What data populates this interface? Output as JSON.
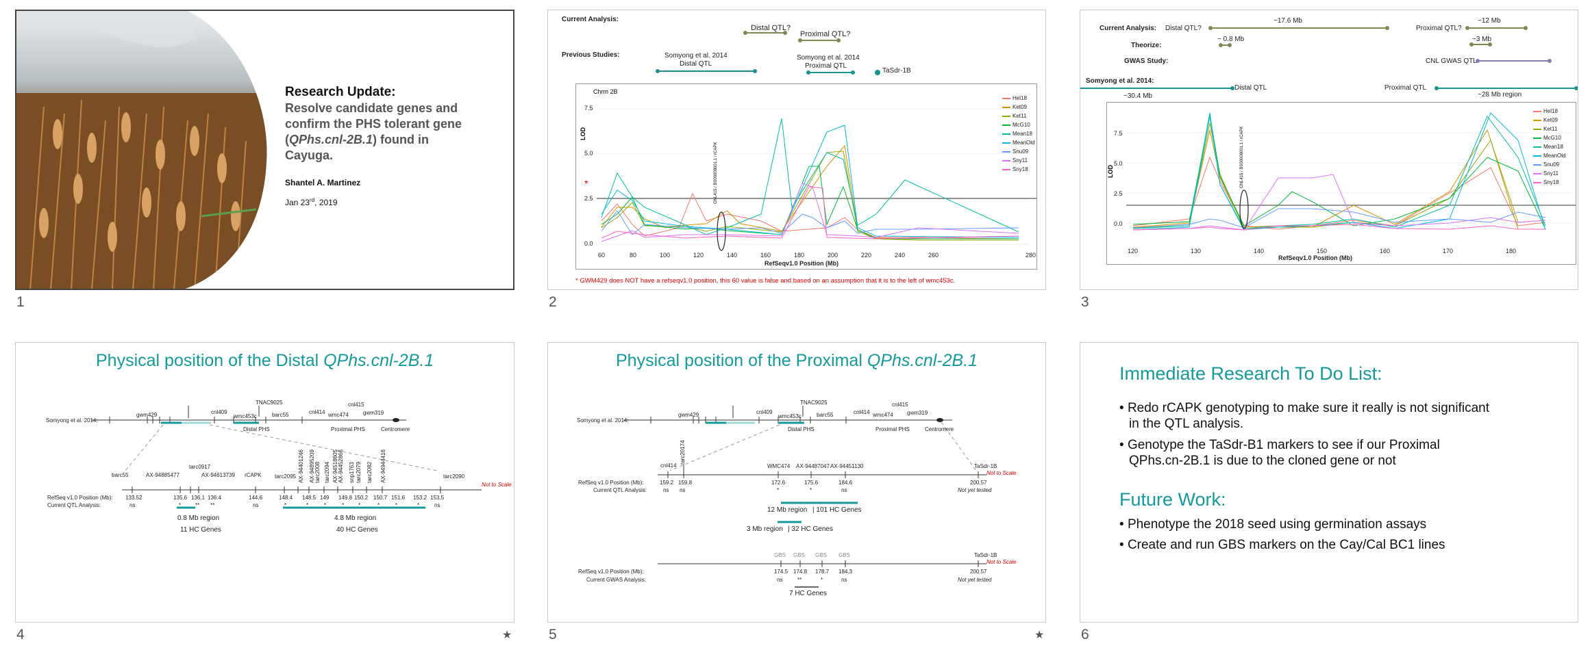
{
  "slides": [
    {
      "number": "1",
      "title": "Research Update:",
      "subtitle_lines": [
        "Resolve candidate genes and",
        "confirm the PHS tolerant gene"
      ],
      "subtitle_paren_open": "(",
      "subtitle_italic": "QPhs.cnl-2B.1",
      "subtitle_paren_close": ") found in",
      "subtitle_last": "Cayuga.",
      "author": "Shantel A. Martinez",
      "date_main": "Jan 23",
      "date_sup": "rd",
      "date_year": ", 2019"
    },
    {
      "number": "2",
      "current_analysis": "Current Analysis:",
      "distal_qtl": "Distal QTL?",
      "proximal_qtl": "Proximal QTL?",
      "previous_studies": "Previous Studies:",
      "somyong_distal_1": "Somyong et al. 2014",
      "somyong_distal_2": "Distal QTL",
      "somyong_prox_1": "Somyong et al. 2014",
      "somyong_prox_2": "Proximal QTL",
      "tasdr": "TaSdr-1B",
      "plot_title": "Chrm 2B",
      "ylabel": "LOD",
      "xlabel": "RefSeqv1.0 Position (Mb)",
      "marker_label": "GNL415 / BS00008001.1 / rCAPK",
      "footnote": "* GWM429 does NOT have a refseqv1.0 position, this 60 value is false and based on an assumption that it is to the left of wmc453c."
    },
    {
      "number": "3",
      "current_analysis": "Current Analysis:",
      "distal_qtl": "Distal QTL?",
      "span_17": "~17.6 Mb",
      "proximal_qtl": "Proximal QTL?",
      "span_12": "~12 Mb",
      "theorize": "Theorize:",
      "span_08": "~ 0.8 Mb",
      "span_3": "~3 Mb",
      "gwas_study": "GWAS Study:",
      "cnl_gwas": "CNL GWAS QTL",
      "somyong": "Somyong et al. 2014:",
      "distal_qtl2": "Distal QTL",
      "span_304": "~30.4 Mb",
      "proximal_qtl2": "Proximal QTL",
      "span_28": "~28 Mb region",
      "ylabel": "LOD",
      "xlabel": "RefSeqv1.0 Position (Mb)",
      "marker_label": "GNL415 / BS00008001.1 / rCAPK"
    },
    {
      "number": "4",
      "title_plain": "Physical position of the Distal ",
      "title_italic": "QPhs.cnl-2B.1",
      "somyong": "Somyong et al. 2014:",
      "top_markers": [
        "gwm429",
        "cnl409",
        "wmc453c",
        "TNAC9025",
        "barc55",
        "cnl414",
        "wmc474",
        "cnl415",
        "gwm319"
      ],
      "distal_phs": "Distal PHS",
      "proximal_phs": "Proximal PHS",
      "centromere": "Centromere",
      "bottom_markers": [
        "barc55",
        "AX-94885477",
        "tarc0917",
        "AX-94613739",
        "rCAPK",
        "tarc2095",
        "AX-94401246",
        "AX-94895209",
        "tarc2008",
        "tarc2094",
        "AX-94518605",
        "AX-94452866",
        "snp1763",
        "tarc2079",
        "tarc2082",
        "AX-94944418",
        "tarc2090"
      ],
      "not_to_scale": "Not to Scale",
      "refseq_label": "RefSeq v1.0 Position (Mb):",
      "positions": [
        "133.52",
        "135.6",
        "136.1",
        "136.4",
        "144.6",
        "148.4",
        "148.5",
        "149",
        "149.8",
        "150.2",
        "150.7",
        "151.6",
        "153.2",
        "153.5"
      ],
      "qtl_label": "Current QTL Analysis:",
      "qtl_values": [
        "ns",
        "*",
        "**",
        "**",
        "ns",
        "*",
        "*",
        "*",
        "*",
        "*",
        "*",
        "*",
        "*",
        "ns"
      ],
      "region_left_1": "0.8 Mb region",
      "region_left_2": "11 HC Genes",
      "region_right_1": "4.8 Mb region",
      "region_right_2": "40 HC Genes",
      "star": "★"
    },
    {
      "number": "5",
      "title_plain": "Physical position of the Proximal ",
      "title_italic": "QPhs.cnl-2B.1",
      "somyong": "Somyong et al. 2014:",
      "top_markers": [
        "gwm429",
        "cnl409",
        "wmc453c",
        "TNAC9025",
        "barc55",
        "cnl414",
        "wmc474",
        "cnl415",
        "gwm319"
      ],
      "distal_phs": "Distal PHS",
      "proximal_phs": "Proximal PHS",
      "centromere": "Centromere",
      "mid_markers": [
        "cnl414",
        "tarc20174",
        "WMC474",
        "AX-94487047",
        "AX-94451130",
        "TaSdr-1B"
      ],
      "not_to_scale": "Not to Scale",
      "refseq_label": "RefSeq v1.0 Position (Mb):",
      "positions": [
        "159.2",
        "159.8",
        "172.6",
        "175.6",
        "184.6",
        "200.57"
      ],
      "qtl_label": "Current QTL Analysis:",
      "qtl_values": [
        "ns",
        "ns",
        "*",
        "*",
        "ns"
      ],
      "not_tested": "Not yet tested",
      "region_12": "12 Mb region",
      "genes_101": "| 101 HC Genes",
      "region_3": "3 Mb region",
      "genes_32": "| 32 HC Genes",
      "gbs_labels": [
        "GBS",
        "GBS",
        "GBS",
        "GBS"
      ],
      "gbs_tasdr": "TaSdr-1B",
      "gbs_positions": [
        "174.5",
        "174.8",
        "178.7",
        "184.3",
        "200.57"
      ],
      "gwas_label": "Current GWAS Analysis:",
      "gwas_values": [
        "ns",
        "**",
        "*",
        "ns"
      ],
      "genes_7": "7 HC Genes",
      "star": "★"
    },
    {
      "number": "6",
      "heading1": "Immediate Research To Do List:",
      "items1": [
        [
          "Redo rCAPK genotyping to make sure it really is not significant",
          "in the QTL analysis."
        ],
        [
          "Genotype the TaSdr-B1 markers to see if our Proximal",
          "QPhs.cn-2B.1 is due to the cloned gene or not"
        ]
      ],
      "heading2": "Future Work:",
      "items2": [
        "Phenotype the 2018 seed using germination assays",
        "Create and run GBS markers on the Cay/Cal BC1 lines"
      ]
    }
  ],
  "legend_slide2": [
    "Hel18",
    "Ket09",
    "Ket11",
    "McG10",
    "Mean18",
    "MeanOld",
    "Snu09",
    "Sny11",
    "Sny18"
  ],
  "legend_slide3": [
    "Hel18",
    "Ket09",
    "Ket11",
    "McG10",
    "Mean18",
    "MeanOld",
    "Snu09",
    "Sny11",
    "Sny18"
  ],
  "slide2_xticks": [
    "60",
    "80",
    "100",
    "120",
    "140",
    "160",
    "180",
    "200",
    "220",
    "240",
    "260",
    "280"
  ],
  "slide2_yticks": [
    "0.0",
    "2.5",
    "5.0",
    "7.5"
  ],
  "slide3_xticks": [
    "120",
    "130",
    "140",
    "150",
    "160",
    "170",
    "180"
  ],
  "slide3_yticks": [
    "0.0",
    "2.5",
    "5.0",
    "7.5"
  ],
  "series_colors": [
    "#f8766d",
    "#d39200",
    "#93aa00",
    "#00ba38",
    "#00c19f",
    "#00b9e3",
    "#619cff",
    "#db72fb",
    "#ff61c3"
  ]
}
